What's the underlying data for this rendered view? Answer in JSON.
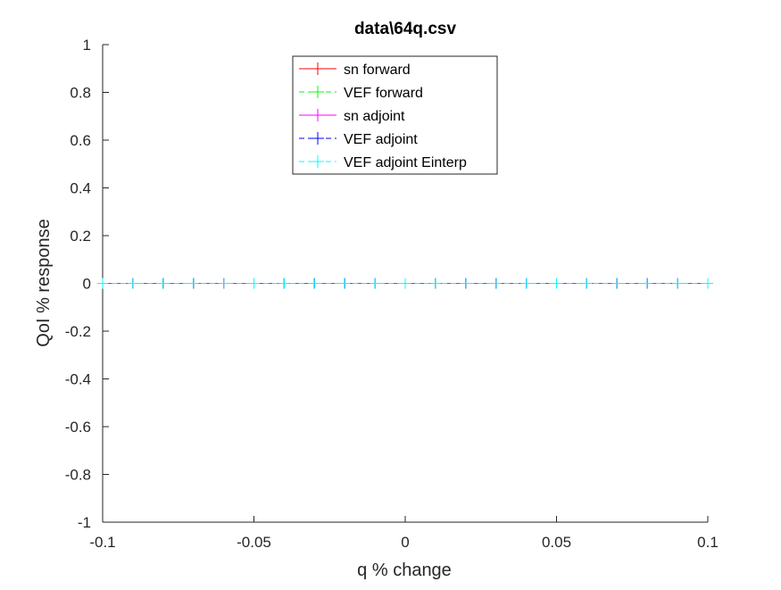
{
  "chart_data": {
    "type": "line",
    "title": "data\\64q.csv",
    "xlabel": "q % change",
    "ylabel": "QoI % response",
    "xlim": [
      -0.1,
      0.1
    ],
    "ylim": [
      -1,
      1
    ],
    "grid": false,
    "legend_position": "top-center",
    "xticks": [
      -0.1,
      -0.05,
      0,
      0.05,
      0.1
    ],
    "xtick_labels": [
      "-0.1",
      "-0.05",
      "0",
      "0.05",
      "0.1"
    ],
    "yticks": [
      -1,
      -0.8,
      -0.6,
      -0.4,
      -0.2,
      0,
      0.2,
      0.4,
      0.6,
      0.8,
      1
    ],
    "ytick_labels": [
      "-1",
      "-0.8",
      "-0.6",
      "-0.4",
      "-0.2",
      "0",
      "0.2",
      "0.4",
      "0.6",
      "0.8",
      "1"
    ],
    "x": [
      -0.1,
      -0.09,
      -0.08,
      -0.07,
      -0.06,
      -0.05,
      -0.04,
      -0.03,
      -0.02,
      -0.01,
      0,
      0.01,
      0.02,
      0.03,
      0.04,
      0.05,
      0.06,
      0.07,
      0.08,
      0.09,
      0.1
    ],
    "series": [
      {
        "name": "sn forward",
        "color": "#ff0000",
        "line_style": "solid",
        "marker": "+",
        "values": [
          0,
          0,
          0,
          0,
          0,
          0,
          0,
          0,
          0,
          0,
          0,
          0,
          0,
          0,
          0,
          0,
          0,
          0,
          0,
          0,
          0
        ]
      },
      {
        "name": "VEF forward",
        "color": "#00ff00",
        "line_style": "dashed",
        "marker": "+",
        "values": [
          0,
          0,
          0,
          0,
          0,
          0,
          0,
          0,
          0,
          0,
          0,
          0,
          0,
          0,
          0,
          0,
          0,
          0,
          0,
          0,
          0
        ]
      },
      {
        "name": "sn adjoint",
        "color": "#ff00ff",
        "line_style": "solid",
        "marker": "+",
        "values": [
          0,
          0,
          0,
          0,
          0,
          0,
          0,
          0,
          0,
          0,
          0,
          0,
          0,
          0,
          0,
          0,
          0,
          0,
          0,
          0,
          0
        ]
      },
      {
        "name": "VEF adjoint",
        "color": "#0000ff",
        "line_style": "dashed",
        "marker": "+",
        "values": [
          0,
          0,
          0,
          0,
          0,
          0,
          0,
          0,
          0,
          0,
          0,
          0,
          0,
          0,
          0,
          0,
          0,
          0,
          0,
          0,
          0
        ]
      },
      {
        "name": "VEF adjoint Einterp",
        "color": "#00ffff",
        "line_style": "dashed",
        "marker": "+",
        "values": [
          0,
          0,
          0,
          0,
          0,
          0,
          0,
          0,
          0,
          0,
          0,
          0,
          0,
          0,
          0,
          0,
          0,
          0,
          0,
          0,
          0
        ]
      }
    ]
  }
}
